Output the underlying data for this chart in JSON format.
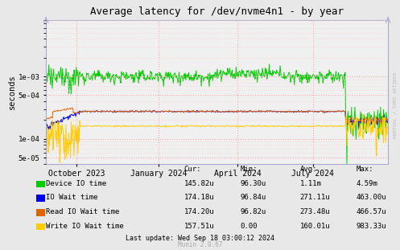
{
  "title": "Average latency for /dev/nvme4n1 - by year",
  "ylabel": "seconds",
  "background_color": "#e8e8e8",
  "plot_bg_color": "#f0f0f0",
  "grid_color_major": "#ffaaaa",
  "grid_color_minor": "#ffcccc",
  "ylim": [
    4e-05,
    0.008
  ],
  "x_ticks": [
    "October 2023",
    "January 2024",
    "April 2024",
    "July 2024"
  ],
  "x_tick_positions": [
    0.09,
    0.33,
    0.56,
    0.78
  ],
  "ytick_labels": [
    "5e-05",
    "1e-04",
    "5e-04",
    "1e-03"
  ],
  "ytick_values": [
    5e-05,
    0.0001,
    0.0005,
    0.001
  ],
  "legend_entries": [
    {
      "label": "Device IO time",
      "color": "#00cc00",
      "cur": "145.82u",
      "min": "96.30u",
      "avg": "1.11m",
      "max": "4.59m"
    },
    {
      "label": "IO Wait time",
      "color": "#0000ee",
      "cur": "174.18u",
      "min": "96.84u",
      "avg": "271.11u",
      "max": "463.00u"
    },
    {
      "label": "Read IO Wait time",
      "color": "#dd6600",
      "cur": "174.20u",
      "min": "96.82u",
      "avg": "273.48u",
      "max": "466.57u"
    },
    {
      "label": "Write IO Wait time",
      "color": "#ffcc00",
      "cur": "157.51u",
      "min": "0.00",
      "avg": "160.01u",
      "max": "983.33u"
    }
  ],
  "footer": "Last update: Wed Sep 18 03:00:12 2024",
  "munin_version": "Munin 2.0.67",
  "watermark": "RRDTOOL / TOBI OETIKER"
}
